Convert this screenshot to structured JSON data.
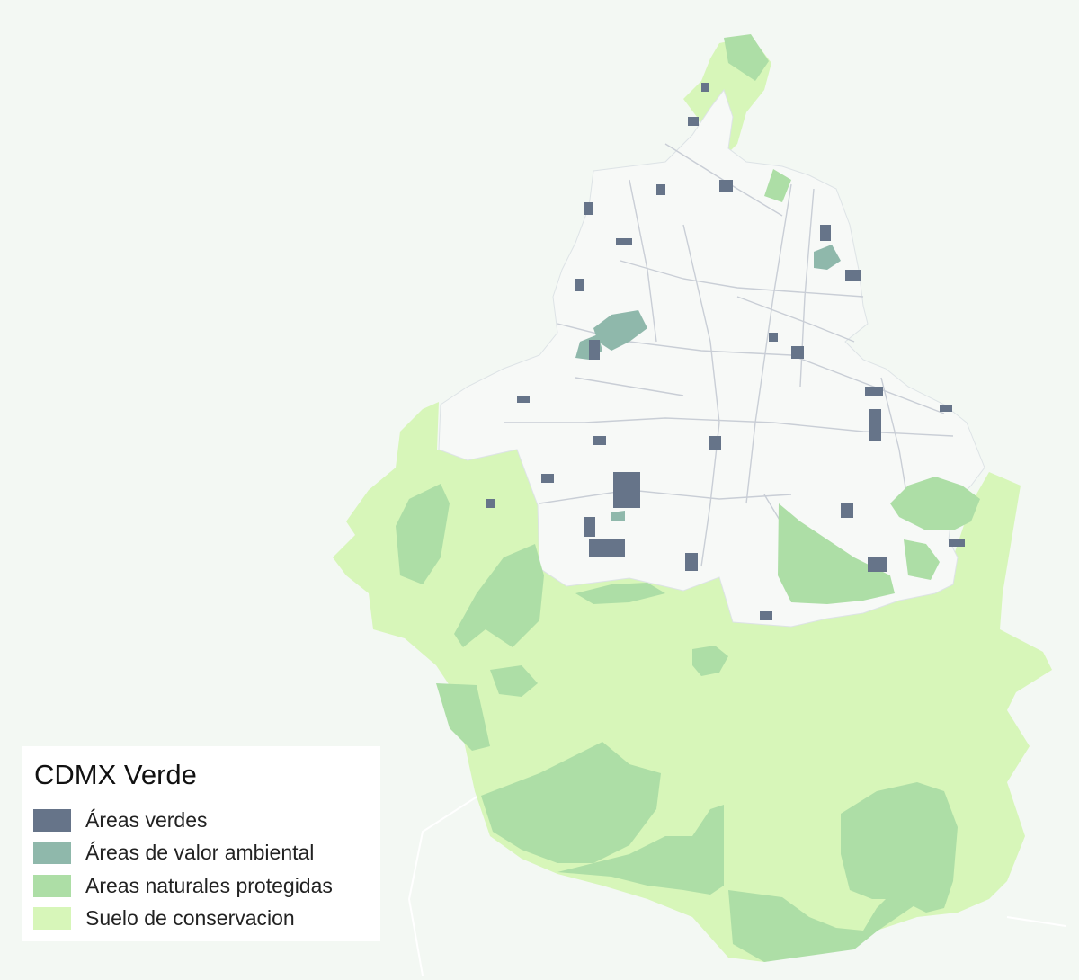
{
  "map": {
    "title": "CDMX Verde",
    "legend": [
      {
        "label": "Áreas verdes",
        "color": "#667489"
      },
      {
        "label": "Áreas de valor ambiental",
        "color": "#8fb8ab"
      },
      {
        "label": "Areas naturales protegidas",
        "color": "#addea6"
      },
      {
        "label": "Suelo de conservacion",
        "color": "#d7f6b9"
      }
    ],
    "colors": {
      "background": "#f3f8f3",
      "urban_area": "#f7f9f7",
      "road": "#c9ced6"
    }
  }
}
